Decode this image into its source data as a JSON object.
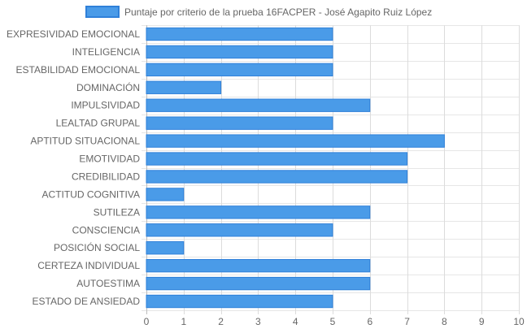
{
  "chart_data": {
    "type": "bar",
    "orientation": "horizontal",
    "title": "",
    "xlabel": "",
    "ylabel": "",
    "xlim": [
      0,
      10
    ],
    "x_ticks": [
      0,
      1,
      2,
      3,
      4,
      5,
      6,
      7,
      8,
      9,
      10
    ],
    "grid": true,
    "legend_position": "top-center",
    "categories": [
      "EXPRESIVIDAD EMOCIONAL",
      "INTELIGENCIA",
      "ESTABILIDAD EMOCIONAL",
      "DOMINACIÓN",
      "IMPULSIVIDAD",
      "LEALTAD GRUPAL",
      "APTITUD SITUACIONAL",
      "EMOTIVIDAD",
      "CREDIBILIDAD",
      "ACTITUD COGNITIVA",
      "SUTILEZA",
      "CONSCIENCIA",
      "POSICIÓN SOCIAL",
      "CERTEZA INDIVIDUAL",
      "AUTOESTIMA",
      "ESTADO DE ANSIEDAD"
    ],
    "series": [
      {
        "name": "Puntaje por criterio de la prueba 16FACPER - José Agapito Ruiz López",
        "values": [
          5,
          5,
          5,
          2,
          6,
          5,
          8,
          7,
          7,
          1,
          6,
          5,
          1,
          6,
          6,
          5
        ],
        "color": "#4a9be8",
        "border_color": "#2f80d9"
      }
    ]
  }
}
